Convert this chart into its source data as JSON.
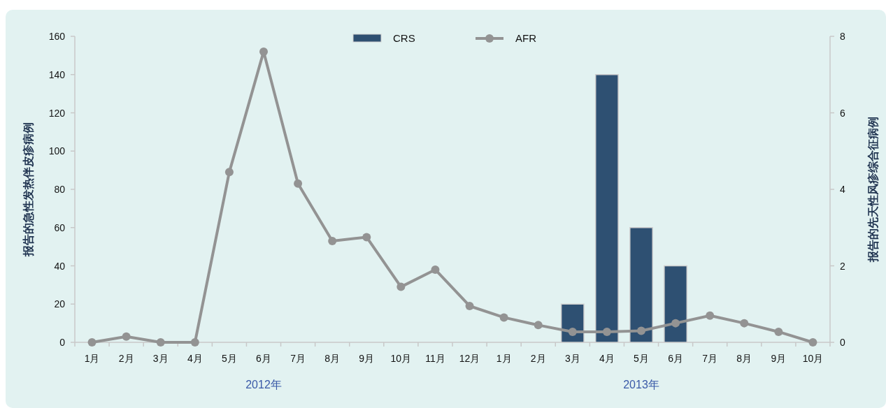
{
  "chart_data": {
    "type": "bar",
    "categories": [
      "1月",
      "2月",
      "3月",
      "4月",
      "5月",
      "6月",
      "7月",
      "8月",
      "9月",
      "10月",
      "11月",
      "12月",
      "1月",
      "2月",
      "3月",
      "4月",
      "5月",
      "6月",
      "7月",
      "8月",
      "9月",
      "10月"
    ],
    "series": [
      {
        "name": "CRS",
        "axis": "y2",
        "color": "#2e5072",
        "values": [
          null,
          null,
          null,
          null,
          null,
          null,
          null,
          null,
          null,
          null,
          null,
          null,
          null,
          null,
          1,
          7,
          3,
          2,
          null,
          null,
          null,
          null
        ]
      },
      {
        "name": "AFR",
        "type": "line",
        "color": "#939393",
        "marker": "circle",
        "line_style": "solid",
        "values": [
          0,
          3,
          0,
          0,
          89,
          152,
          83,
          53,
          55,
          29,
          38,
          19,
          13,
          9,
          5.5,
          5.5,
          6,
          10,
          14,
          10,
          5.5,
          0
        ]
      }
    ],
    "ylabel": "报告的急性发热伴皮疹病例",
    "y2label": "报告的先天性风疹综合征病例",
    "ylim": [
      0,
      160
    ],
    "yticks": [
      0,
      20,
      40,
      60,
      80,
      100,
      120,
      140,
      160
    ],
    "y2lim": [
      0,
      8
    ],
    "y2ticks": [
      0,
      2,
      4,
      6,
      8
    ],
    "annotations": [
      "2012年",
      "2013年"
    ],
    "legend": "top",
    "grid": false
  }
}
